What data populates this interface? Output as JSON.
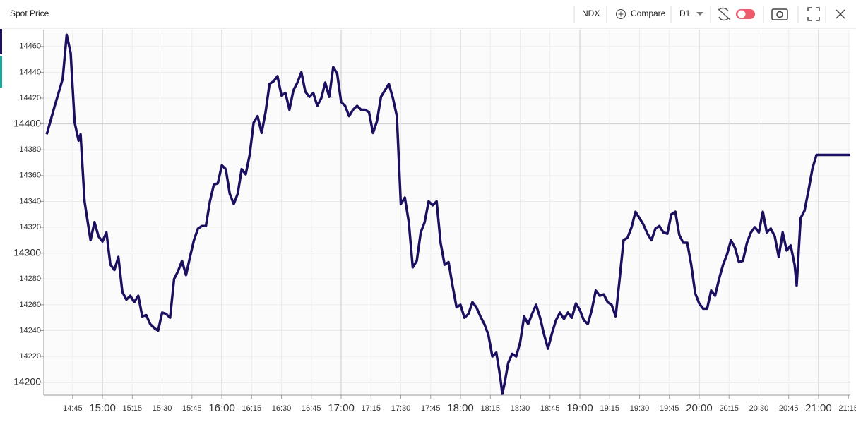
{
  "toolbar": {
    "symbol": "NDX",
    "compare": "Compare",
    "interval": "D1"
  },
  "chart_data": {
    "type": "line",
    "title": "Spot Price",
    "x": [
      872,
      876,
      880,
      882,
      884,
      886,
      888,
      889,
      891,
      894,
      896,
      898,
      900,
      902,
      904,
      906,
      908,
      910,
      912,
      914,
      916,
      918,
      920,
      922,
      924,
      926,
      928,
      930,
      932,
      934,
      936,
      938,
      940,
      942,
      944,
      946,
      948,
      950,
      952,
      954,
      956,
      958,
      960,
      962,
      964,
      966,
      968,
      970,
      972,
      974,
      976,
      978,
      980,
      982,
      984,
      986,
      988,
      990,
      992,
      994,
      996,
      998,
      1000,
      1002,
      1004,
      1006,
      1008,
      1010,
      1012,
      1014,
      1016,
      1018,
      1020,
      1022,
      1024,
      1026,
      1028,
      1030,
      1032,
      1034,
      1036,
      1038,
      1040,
      1042,
      1044,
      1046,
      1048,
      1050,
      1052,
      1054,
      1056,
      1058,
      1060,
      1062,
      1064,
      1066,
      1068,
      1070,
      1072,
      1074,
      1076,
      1078,
      1080,
      1082,
      1084,
      1086,
      1088,
      1090,
      1092,
      1094,
      1096,
      1098,
      1100,
      1101,
      1102,
      1104,
      1106,
      1108,
      1110,
      1112,
      1114,
      1116,
      1118,
      1120,
      1122,
      1124,
      1126,
      1128,
      1130,
      1132,
      1134,
      1136,
      1138,
      1140,
      1142,
      1144,
      1146,
      1148,
      1150,
      1152,
      1154,
      1156,
      1158,
      1160,
      1162,
      1164,
      1166,
      1168,
      1170,
      1172,
      1174,
      1176,
      1178,
      1180,
      1182,
      1184,
      1186,
      1188,
      1190,
      1192,
      1194,
      1196,
      1198,
      1200,
      1202,
      1204,
      1206,
      1208,
      1210,
      1212,
      1214,
      1216,
      1218,
      1220,
      1222,
      1224,
      1226,
      1228,
      1230,
      1232,
      1234,
      1236,
      1238,
      1240,
      1242,
      1244,
      1246,
      1248,
      1249,
      1251,
      1253,
      1255,
      1257,
      1259,
      1276
    ],
    "series": [
      {
        "name": "NDX",
        "color": "#1b1060",
        "values": [
          14392,
          14414,
          14435,
          14469,
          14455,
          14401,
          14387,
          14392,
          14340,
          14310,
          14324,
          14313,
          14309,
          14316,
          14291,
          14287,
          14297,
          14270,
          14264,
          14267,
          14262,
          14267,
          14251,
          14252,
          14245,
          14242,
          14240,
          14254,
          14253,
          14250,
          14280,
          14286,
          14294,
          14283,
          14297,
          14310,
          14319,
          14321,
          14321,
          14340,
          14353,
          14354,
          14368,
          14365,
          14346,
          14338,
          14346,
          14365,
          14361,
          14376,
          14401,
          14406,
          14393,
          14409,
          14431,
          14433,
          14437,
          14422,
          14424,
          14411,
          14426,
          14432,
          14440,
          14425,
          14421,
          14424,
          14414,
          14420,
          14432,
          14421,
          14444,
          14439,
          14417,
          14414,
          14406,
          14411,
          14414,
          14411,
          14411,
          14409,
          14393,
          14402,
          14421,
          14426,
          14431,
          14420,
          14406,
          14338,
          14343,
          14324,
          14289,
          14294,
          14316,
          14324,
          14340,
          14337,
          14340,
          14308,
          14291,
          14293,
          14275,
          14258,
          14260,
          14250,
          14253,
          14262,
          14258,
          14251,
          14245,
          14237,
          14220,
          14223,
          14204,
          14191,
          14198,
          14215,
          14222,
          14220,
          14231,
          14251,
          14245,
          14253,
          14260,
          14250,
          14237,
          14226,
          14238,
          14248,
          14254,
          14249,
          14254,
          14250,
          14261,
          14256,
          14248,
          14245,
          14256,
          14271,
          14267,
          14268,
          14262,
          14260,
          14251,
          14280,
          14310,
          14312,
          14320,
          14332,
          14327,
          14322,
          14315,
          14310,
          14319,
          14321,
          14316,
          14315,
          14330,
          14332,
          14314,
          14308,
          14308,
          14291,
          14269,
          14261,
          14257,
          14257,
          14271,
          14267,
          14280,
          14291,
          14299,
          14310,
          14304,
          14293,
          14294,
          14308,
          14316,
          14320,
          14316,
          14332,
          14316,
          14319,
          14313,
          14297,
          14316,
          14302,
          14306,
          14291,
          14275,
          14327,
          14333,
          14349,
          14366,
          14376,
          14376
        ]
      }
    ],
    "xlim": [
      870.5,
      1276
    ],
    "xticks": [
      {
        "value": 885,
        "label": "14:45"
      },
      {
        "value": 900,
        "label": "15:00"
      },
      {
        "value": 915,
        "label": "15:15"
      },
      {
        "value": 930,
        "label": "15:30"
      },
      {
        "value": 945,
        "label": "15:45"
      },
      {
        "value": 960,
        "label": "16:00"
      },
      {
        "value": 975,
        "label": "16:15"
      },
      {
        "value": 990,
        "label": "16:30"
      },
      {
        "value": 1005,
        "label": "16:45"
      },
      {
        "value": 1020,
        "label": "17:00"
      },
      {
        "value": 1035,
        "label": "17:15"
      },
      {
        "value": 1050,
        "label": "17:30"
      },
      {
        "value": 1065,
        "label": "17:45"
      },
      {
        "value": 1080,
        "label": "18:00"
      },
      {
        "value": 1095,
        "label": "18:15"
      },
      {
        "value": 1110,
        "label": "18:30"
      },
      {
        "value": 1125,
        "label": "18:45"
      },
      {
        "value": 1140,
        "label": "19:00"
      },
      {
        "value": 1155,
        "label": "19:15"
      },
      {
        "value": 1170,
        "label": "19:30"
      },
      {
        "value": 1185,
        "label": "19:45"
      },
      {
        "value": 1200,
        "label": "20:00"
      },
      {
        "value": 1215,
        "label": "20:15"
      },
      {
        "value": 1230,
        "label": "20:30"
      },
      {
        "value": 1245,
        "label": "20:45"
      },
      {
        "value": 1260,
        "label": "21:00"
      },
      {
        "value": 1275,
        "label": "21:15"
      }
    ],
    "ylim": [
      14190,
      14473
    ],
    "yticks": [
      14200,
      14220,
      14240,
      14260,
      14280,
      14300,
      14320,
      14340,
      14360,
      14380,
      14400,
      14420,
      14440,
      14460
    ],
    "grid": true
  }
}
